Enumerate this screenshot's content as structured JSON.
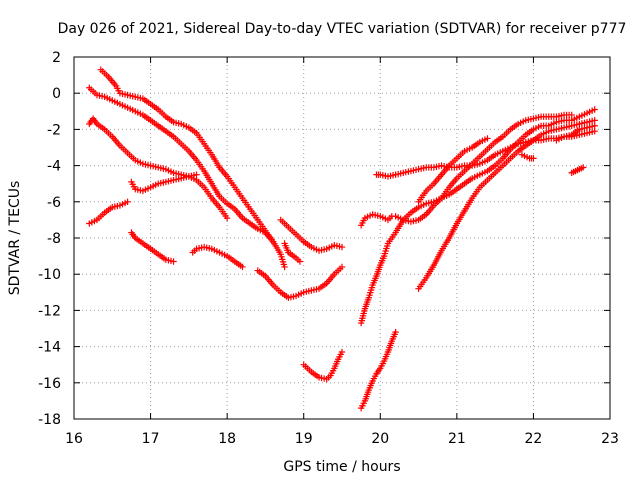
{
  "chart_data": {
    "type": "scatter",
    "title": "Day 026 of 2021, Sidereal Day-to-day VTEC variation (SDTVAR) for receiver p777",
    "xlabel": "GPS time / hours",
    "ylabel": "SDTVAR / TECUs",
    "xlim": [
      16,
      23
    ],
    "ylim": [
      -18,
      2
    ],
    "xticks": [
      "16",
      "17",
      "18",
      "19",
      "20",
      "21",
      "22",
      "23"
    ],
    "yticks": [
      "2",
      "0",
      "-2",
      "-4",
      "-6",
      "-8",
      "-10",
      "-12",
      "-14",
      "-16",
      "-18"
    ],
    "grid": true,
    "marker": "+",
    "color": "#ff0000",
    "series": [
      {
        "name": "track-1",
        "points": [
          [
            16.35,
            1.3
          ],
          [
            16.45,
            0.9
          ],
          [
            16.55,
            0.4
          ],
          [
            16.6,
            0.0
          ],
          [
            16.7,
            -0.1
          ],
          [
            16.8,
            -0.2
          ],
          [
            16.9,
            -0.3
          ],
          [
            17.0,
            -0.6
          ],
          [
            17.1,
            -0.9
          ],
          [
            17.2,
            -1.3
          ],
          [
            17.3,
            -1.6
          ],
          [
            17.4,
            -1.7
          ],
          [
            17.5,
            -1.9
          ],
          [
            17.6,
            -2.2
          ],
          [
            17.7,
            -2.8
          ],
          [
            17.8,
            -3.4
          ],
          [
            17.9,
            -4.1
          ],
          [
            18.0,
            -4.6
          ],
          [
            18.1,
            -5.2
          ],
          [
            18.2,
            -5.8
          ],
          [
            18.3,
            -6.4
          ],
          [
            18.4,
            -7.0
          ],
          [
            18.5,
            -7.6
          ],
          [
            18.6,
            -8.2
          ],
          [
            18.7,
            -8.9
          ],
          [
            18.75,
            -9.6
          ]
        ]
      },
      {
        "name": "track-2",
        "points": [
          [
            16.2,
            0.3
          ],
          [
            16.3,
            -0.1
          ],
          [
            16.4,
            -0.2
          ],
          [
            16.5,
            -0.4
          ],
          [
            16.6,
            -0.6
          ],
          [
            16.7,
            -0.8
          ],
          [
            16.8,
            -1.0
          ],
          [
            16.9,
            -1.2
          ],
          [
            17.0,
            -1.5
          ],
          [
            17.1,
            -1.8
          ],
          [
            17.2,
            -2.1
          ],
          [
            17.3,
            -2.4
          ],
          [
            17.4,
            -2.8
          ],
          [
            17.5,
            -3.2
          ],
          [
            17.6,
            -3.7
          ],
          [
            17.7,
            -4.3
          ],
          [
            17.8,
            -5.0
          ],
          [
            17.9,
            -5.7
          ],
          [
            18.0,
            -6.1
          ],
          [
            18.1,
            -6.4
          ],
          [
            18.2,
            -6.9
          ],
          [
            18.3,
            -7.2
          ],
          [
            18.4,
            -7.5
          ],
          [
            18.5,
            -7.7
          ],
          [
            18.6,
            -8.2
          ]
        ]
      },
      {
        "name": "track-3",
        "points": [
          [
            16.2,
            -1.7
          ],
          [
            16.25,
            -1.4
          ],
          [
            16.3,
            -1.7
          ],
          [
            16.4,
            -2.0
          ],
          [
            16.5,
            -2.4
          ],
          [
            16.6,
            -2.9
          ],
          [
            16.7,
            -3.3
          ],
          [
            16.8,
            -3.7
          ],
          [
            16.9,
            -3.9
          ],
          [
            17.0,
            -4.0
          ],
          [
            17.1,
            -4.1
          ],
          [
            17.2,
            -4.2
          ],
          [
            17.3,
            -4.4
          ],
          [
            17.4,
            -4.5
          ],
          [
            17.5,
            -4.6
          ],
          [
            17.6,
            -4.8
          ],
          [
            17.7,
            -5.2
          ],
          [
            17.8,
            -5.8
          ],
          [
            17.9,
            -6.3
          ],
          [
            18.0,
            -6.9
          ]
        ]
      },
      {
        "name": "track-4",
        "points": [
          [
            16.75,
            -4.9
          ],
          [
            16.8,
            -5.3
          ],
          [
            16.9,
            -5.4
          ],
          [
            17.0,
            -5.2
          ],
          [
            17.1,
            -5.0
          ],
          [
            17.2,
            -4.9
          ],
          [
            17.3,
            -4.8
          ],
          [
            17.4,
            -4.7
          ],
          [
            17.5,
            -4.6
          ],
          [
            17.6,
            -4.5
          ]
        ]
      },
      {
        "name": "track-5",
        "points": [
          [
            16.2,
            -7.2
          ],
          [
            16.3,
            -7.0
          ],
          [
            16.4,
            -6.6
          ],
          [
            16.5,
            -6.3
          ],
          [
            16.6,
            -6.2
          ],
          [
            16.7,
            -6.0
          ]
        ]
      },
      {
        "name": "track-6",
        "points": [
          [
            16.75,
            -7.7
          ],
          [
            16.8,
            -8.0
          ],
          [
            16.9,
            -8.3
          ],
          [
            17.0,
            -8.6
          ],
          [
            17.1,
            -8.9
          ],
          [
            17.2,
            -9.2
          ],
          [
            17.3,
            -9.3
          ]
        ]
      },
      {
        "name": "track-7",
        "points": [
          [
            17.55,
            -8.8
          ],
          [
            17.6,
            -8.6
          ],
          [
            17.7,
            -8.5
          ],
          [
            17.8,
            -8.6
          ],
          [
            17.9,
            -8.8
          ],
          [
            18.0,
            -9.0
          ],
          [
            18.1,
            -9.3
          ],
          [
            18.2,
            -9.6
          ]
        ]
      },
      {
        "name": "track-8",
        "points": [
          [
            18.4,
            -9.8
          ],
          [
            18.5,
            -10.1
          ],
          [
            18.6,
            -10.6
          ],
          [
            18.7,
            -11.0
          ],
          [
            18.8,
            -11.3
          ],
          [
            18.9,
            -11.2
          ],
          [
            19.0,
            -11.0
          ],
          [
            19.1,
            -10.9
          ],
          [
            19.2,
            -10.8
          ],
          [
            19.3,
            -10.5
          ],
          [
            19.4,
            -10.0
          ],
          [
            19.5,
            -9.6
          ]
        ]
      },
      {
        "name": "track-9",
        "points": [
          [
            18.7,
            -7.0
          ],
          [
            18.8,
            -7.4
          ],
          [
            18.9,
            -7.8
          ],
          [
            19.0,
            -8.2
          ],
          [
            19.1,
            -8.5
          ],
          [
            19.2,
            -8.7
          ],
          [
            19.3,
            -8.6
          ],
          [
            19.4,
            -8.4
          ],
          [
            19.5,
            -8.5
          ]
        ]
      },
      {
        "name": "track-10",
        "points": [
          [
            18.75,
            -8.3
          ],
          [
            18.8,
            -8.8
          ],
          [
            18.9,
            -9.1
          ],
          [
            18.95,
            -9.3
          ]
        ]
      },
      {
        "name": "track-11",
        "points": [
          [
            19.0,
            -15.0
          ],
          [
            19.1,
            -15.4
          ],
          [
            19.2,
            -15.7
          ],
          [
            19.3,
            -15.8
          ],
          [
            19.35,
            -15.6
          ],
          [
            19.4,
            -15.2
          ],
          [
            19.45,
            -14.7
          ],
          [
            19.5,
            -14.3
          ]
        ]
      },
      {
        "name": "track-12",
        "points": [
          [
            19.75,
            -17.4
          ],
          [
            19.8,
            -17.0
          ],
          [
            19.85,
            -16.4
          ],
          [
            19.9,
            -15.9
          ],
          [
            19.95,
            -15.5
          ],
          [
            20.0,
            -15.2
          ],
          [
            20.05,
            -14.8
          ],
          [
            20.1,
            -14.3
          ],
          [
            20.15,
            -13.7
          ],
          [
            20.2,
            -13.2
          ]
        ]
      },
      {
        "name": "track-13",
        "points": [
          [
            19.75,
            -12.7
          ],
          [
            19.8,
            -11.9
          ],
          [
            19.85,
            -11.3
          ],
          [
            19.9,
            -10.6
          ],
          [
            19.95,
            -10.1
          ],
          [
            20.0,
            -9.5
          ],
          [
            20.05,
            -9.0
          ],
          [
            20.1,
            -8.3
          ],
          [
            20.2,
            -7.7
          ],
          [
            20.3,
            -7.0
          ],
          [
            20.4,
            -6.6
          ],
          [
            20.5,
            -6.3
          ],
          [
            20.6,
            -6.1
          ],
          [
            20.7,
            -6.0
          ],
          [
            20.8,
            -5.8
          ],
          [
            20.9,
            -5.6
          ],
          [
            21.0,
            -5.3
          ],
          [
            21.1,
            -5.0
          ],
          [
            21.2,
            -4.7
          ],
          [
            21.3,
            -4.5
          ],
          [
            21.4,
            -4.3
          ],
          [
            21.5,
            -4.0
          ],
          [
            21.6,
            -3.6
          ],
          [
            21.7,
            -3.1
          ],
          [
            21.8,
            -2.7
          ],
          [
            21.9,
            -2.3
          ],
          [
            22.0,
            -2.0
          ],
          [
            22.1,
            -1.8
          ],
          [
            22.2,
            -1.8
          ],
          [
            22.3,
            -1.6
          ],
          [
            22.4,
            -1.5
          ],
          [
            22.5,
            -1.5
          ],
          [
            22.6,
            -1.3
          ],
          [
            22.7,
            -1.1
          ],
          [
            22.8,
            -0.9
          ]
        ]
      },
      {
        "name": "track-14",
        "points": [
          [
            19.75,
            -7.3
          ],
          [
            19.8,
            -6.9
          ],
          [
            19.9,
            -6.7
          ],
          [
            20.0,
            -6.8
          ],
          [
            20.1,
            -7.0
          ],
          [
            20.15,
            -6.8
          ]
        ]
      },
      {
        "name": "track-15",
        "points": [
          [
            19.95,
            -4.5
          ],
          [
            20.0,
            -4.5
          ],
          [
            20.1,
            -4.6
          ],
          [
            20.2,
            -4.5
          ],
          [
            20.3,
            -4.4
          ],
          [
            20.4,
            -4.3
          ],
          [
            20.5,
            -4.2
          ],
          [
            20.6,
            -4.1
          ],
          [
            20.7,
            -4.1
          ],
          [
            20.8,
            -4.0
          ],
          [
            20.9,
            -4.1
          ],
          [
            21.0,
            -4.1
          ],
          [
            21.1,
            -4.0
          ],
          [
            21.2,
            -4.0
          ],
          [
            21.3,
            -3.9
          ],
          [
            21.4,
            -3.7
          ],
          [
            21.5,
            -3.4
          ],
          [
            21.6,
            -3.2
          ],
          [
            21.7,
            -3.0
          ],
          [
            21.8,
            -2.8
          ],
          [
            21.9,
            -2.7
          ],
          [
            22.0,
            -2.6
          ],
          [
            22.1,
            -2.6
          ],
          [
            22.2,
            -2.5
          ],
          [
            22.3,
            -2.5
          ],
          [
            22.4,
            -2.4
          ],
          [
            22.5,
            -2.4
          ],
          [
            22.6,
            -2.3
          ],
          [
            22.7,
            -2.2
          ],
          [
            22.8,
            -2.1
          ]
        ]
      },
      {
        "name": "track-16",
        "points": [
          [
            20.2,
            -6.8
          ],
          [
            20.3,
            -7.0
          ],
          [
            20.4,
            -7.1
          ],
          [
            20.5,
            -7.0
          ],
          [
            20.6,
            -6.7
          ],
          [
            20.7,
            -6.2
          ],
          [
            20.8,
            -5.8
          ],
          [
            20.9,
            -5.2
          ],
          [
            21.0,
            -4.7
          ],
          [
            21.1,
            -4.3
          ],
          [
            21.2,
            -3.9
          ],
          [
            21.3,
            -3.5
          ],
          [
            21.4,
            -3.1
          ],
          [
            21.5,
            -2.7
          ],
          [
            21.6,
            -2.4
          ],
          [
            21.7,
            -2.0
          ],
          [
            21.8,
            -1.7
          ],
          [
            21.9,
            -1.5
          ],
          [
            22.0,
            -1.4
          ],
          [
            22.1,
            -1.3
          ],
          [
            22.2,
            -1.3
          ],
          [
            22.3,
            -1.3
          ],
          [
            22.4,
            -1.2
          ],
          [
            22.5,
            -1.2
          ]
        ]
      },
      {
        "name": "track-17",
        "points": [
          [
            20.5,
            -6.0
          ],
          [
            20.6,
            -5.4
          ],
          [
            20.7,
            -5.0
          ],
          [
            20.8,
            -4.5
          ],
          [
            20.9,
            -4.0
          ],
          [
            21.0,
            -3.6
          ],
          [
            21.1,
            -3.2
          ],
          [
            21.2,
            -3.0
          ],
          [
            21.3,
            -2.7
          ],
          [
            21.4,
            -2.5
          ]
        ]
      },
      {
        "name": "track-18",
        "points": [
          [
            20.5,
            -10.8
          ],
          [
            20.6,
            -10.2
          ],
          [
            20.7,
            -9.5
          ],
          [
            20.8,
            -8.7
          ],
          [
            20.9,
            -8.0
          ],
          [
            21.0,
            -7.2
          ],
          [
            21.1,
            -6.5
          ],
          [
            21.2,
            -5.8
          ],
          [
            21.3,
            -5.2
          ],
          [
            21.4,
            -4.8
          ],
          [
            21.5,
            -4.4
          ],
          [
            21.6,
            -4.0
          ],
          [
            21.7,
            -3.6
          ],
          [
            21.8,
            -3.2
          ],
          [
            21.9,
            -2.9
          ],
          [
            22.0,
            -2.6
          ],
          [
            22.1,
            -2.3
          ],
          [
            22.2,
            -2.1
          ],
          [
            22.3,
            -2.0
          ],
          [
            22.4,
            -1.9
          ],
          [
            22.5,
            -1.8
          ],
          [
            22.6,
            -1.7
          ],
          [
            22.7,
            -1.6
          ],
          [
            22.8,
            -1.5
          ]
        ]
      },
      {
        "name": "track-19",
        "points": [
          [
            21.85,
            -3.4
          ],
          [
            21.95,
            -3.6
          ],
          [
            22.0,
            -3.6
          ]
        ]
      },
      {
        "name": "track-20",
        "points": [
          [
            22.5,
            -4.4
          ],
          [
            22.55,
            -4.3
          ],
          [
            22.6,
            -4.2
          ],
          [
            22.65,
            -4.1
          ]
        ]
      },
      {
        "name": "track-21",
        "points": [
          [
            22.3,
            -2.6
          ],
          [
            22.4,
            -2.4
          ],
          [
            22.5,
            -2.3
          ],
          [
            22.6,
            -2.0
          ],
          [
            22.7,
            -1.9
          ],
          [
            22.8,
            -1.8
          ]
        ]
      }
    ]
  }
}
